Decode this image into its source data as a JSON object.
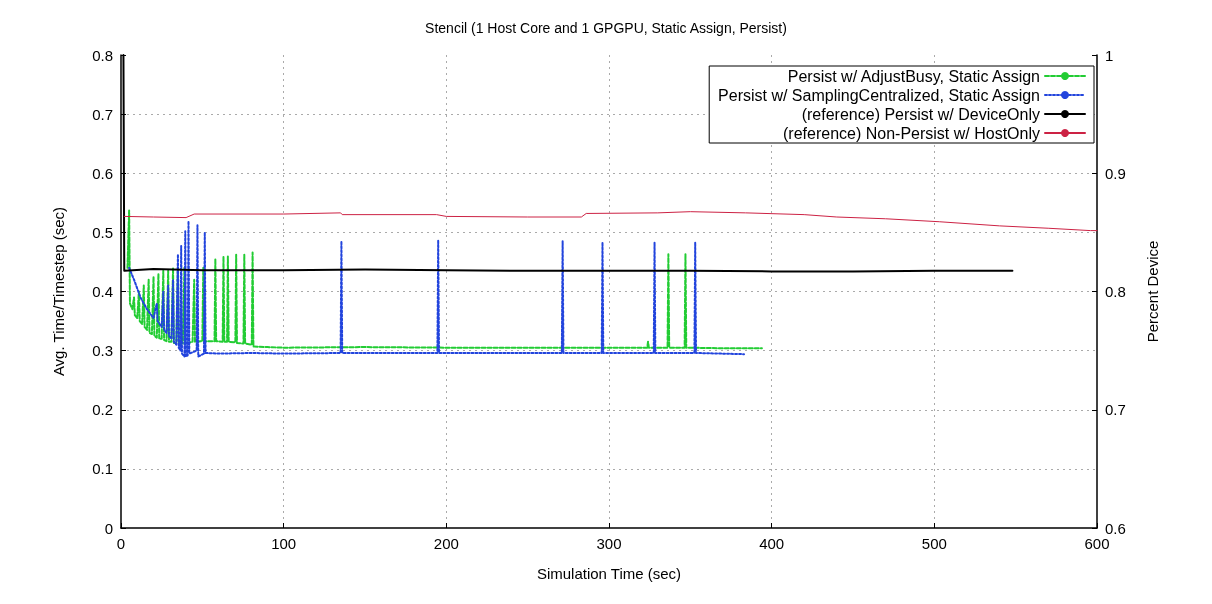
{
  "chart_data": {
    "type": "line",
    "title": "Stencil (1 Host Core and 1 GPGPU, Static Assign, Persist)",
    "xlabel": "Simulation Time (sec)",
    "ylabel": "Avg. Time/Timestep (sec)",
    "y2label": "Percent Device",
    "xlim": [
      0,
      600
    ],
    "xticks": [
      0,
      100,
      200,
      300,
      400,
      500,
      600
    ],
    "ylim": [
      0,
      0.8
    ],
    "yticks": [
      0,
      0.1,
      0.2,
      0.3,
      0.4,
      0.5,
      0.6,
      0.7,
      0.8
    ],
    "y2lim": [
      0.6,
      1
    ],
    "y2ticks": [
      0.6,
      0.7,
      0.8,
      0.9,
      1
    ],
    "grid": true,
    "legend": "top right",
    "marker": "none",
    "series": [
      {
        "name": "Persist w/ AdjustBusy, Static Assign",
        "color": "#22cc33",
        "line_style": "dashed",
        "x": [
          4,
          5,
          5.5,
          7,
          8,
          8.5,
          10,
          11,
          11.5,
          13,
          14,
          14.5,
          16,
          17,
          17.5,
          19,
          20,
          20.5,
          22,
          23,
          23.5,
          25,
          26,
          26.5,
          28,
          29,
          29.5,
          31,
          32,
          32.5,
          34,
          35,
          35.5,
          38,
          39,
          39.5,
          44,
          45,
          45.5,
          50,
          50.6,
          51.2,
          57.5,
          58,
          58.5,
          62.5,
          63,
          63.5,
          65.2,
          65.7,
          66.2,
          70.3,
          70.8,
          71.3,
          75.3,
          75.8,
          76.3,
          80.4,
          80.9,
          81.4,
          90,
          100,
          150,
          200,
          250,
          300,
          323.5,
          324,
          324.5,
          336,
          336.5,
          337,
          346.5,
          347,
          347.5,
          370,
          394
        ],
        "values": [
          0.44,
          0.537,
          0.38,
          0.37,
          0.39,
          0.36,
          0.355,
          0.4,
          0.35,
          0.345,
          0.41,
          0.34,
          0.335,
          0.42,
          0.33,
          0.328,
          0.425,
          0.325,
          0.322,
          0.43,
          0.32,
          0.32,
          0.435,
          0.318,
          0.316,
          0.435,
          0.315,
          0.315,
          0.44,
          0.313,
          0.313,
          0.44,
          0.312,
          0.312,
          0.44,
          0.312,
          0.315,
          0.42,
          0.315,
          0.316,
          0.44,
          0.316,
          0.316,
          0.455,
          0.316,
          0.315,
          0.459,
          0.315,
          0.315,
          0.459,
          0.315,
          0.314,
          0.462,
          0.313,
          0.312,
          0.462,
          0.312,
          0.31,
          0.466,
          0.307,
          0.306,
          0.305,
          0.306,
          0.305,
          0.305,
          0.305,
          0.305,
          0.315,
          0.305,
          0.305,
          0.463,
          0.305,
          0.305,
          0.463,
          0.305,
          0.304,
          0.304
        ]
      },
      {
        "name": "Persist w/ SamplingCentralized, Static Assign",
        "color": "#2244dd",
        "line_style": "dotted",
        "x": [
          5,
          8,
          12,
          16,
          20,
          22,
          22.5,
          25,
          26,
          26.5,
          28,
          29,
          29.5,
          31,
          32,
          32.5,
          34,
          35,
          35.5,
          36.5,
          37,
          37.5,
          39,
          39.5,
          40,
          41,
          41.5,
          42,
          46.5,
          47,
          47.5,
          51,
          51.5,
          52,
          60,
          80,
          100,
          135,
          135.5,
          136,
          194.5,
          195,
          195.5,
          271,
          271.5,
          272,
          295.5,
          296,
          296.5,
          327.5,
          328,
          328.5,
          352.5,
          353,
          353.5,
          383
        ],
        "values": [
          0.44,
          0.42,
          0.39,
          0.37,
          0.355,
          0.38,
          0.35,
          0.34,
          0.4,
          0.335,
          0.33,
          0.41,
          0.325,
          0.32,
          0.42,
          0.315,
          0.31,
          0.463,
          0.305,
          0.3,
          0.477,
          0.295,
          0.29,
          0.502,
          0.29,
          0.292,
          0.519,
          0.295,
          0.3,
          0.512,
          0.29,
          0.295,
          0.5,
          0.296,
          0.295,
          0.296,
          0.295,
          0.296,
          0.485,
          0.296,
          0.296,
          0.487,
          0.296,
          0.296,
          0.485,
          0.296,
          0.296,
          0.483,
          0.296,
          0.296,
          0.483,
          0.296,
          0.296,
          0.483,
          0.296,
          0.294
        ]
      },
      {
        "name": "(reference) Persist w/ DeviceOnly",
        "color": "#000000",
        "line_style": "solid",
        "x": [
          1.5,
          2,
          20,
          50,
          100,
          150,
          200,
          250,
          300,
          350,
          400,
          450,
          500,
          548
        ],
        "values": [
          0.8,
          0.435,
          0.438,
          0.436,
          0.436,
          0.437,
          0.436,
          0.435,
          0.435,
          0.435,
          0.434,
          0.434,
          0.435,
          0.435
        ]
      },
      {
        "name": "(reference) Non-Persist w/ HostOnly",
        "color": "#cc2244",
        "line_style": "solid",
        "x": [
          2,
          20,
          40,
          45,
          100,
          135,
          136,
          194,
          200,
          250,
          283,
          286,
          330,
          350,
          384,
          420,
          440,
          470,
          503,
          540,
          570,
          596,
          600
        ],
        "values": [
          0.527,
          0.526,
          0.525,
          0.531,
          0.531,
          0.533,
          0.53,
          0.53,
          0.527,
          0.526,
          0.526,
          0.532,
          0.533,
          0.535,
          0.533,
          0.53,
          0.526,
          0.523,
          0.518,
          0.511,
          0.507,
          0.503,
          0.503
        ]
      }
    ]
  }
}
